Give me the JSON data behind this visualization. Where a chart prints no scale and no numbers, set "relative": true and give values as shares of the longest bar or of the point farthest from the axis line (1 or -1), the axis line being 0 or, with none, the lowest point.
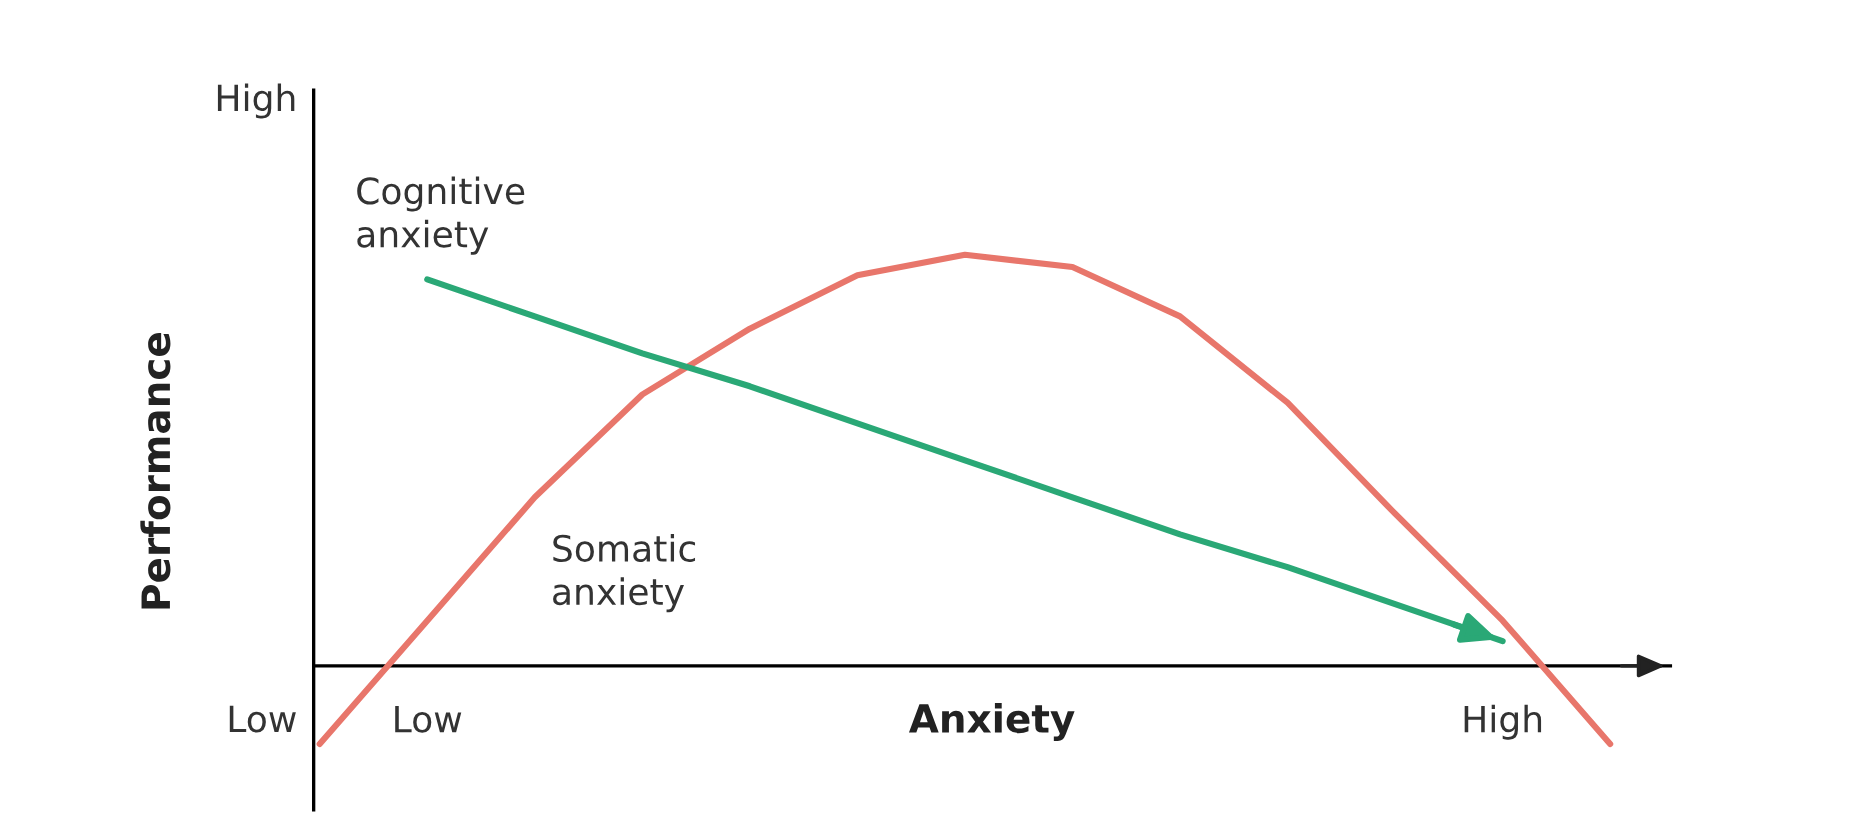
{
  "chart_data": {
    "type": "line",
    "relative": true,
    "xlabel": "Anxiety",
    "ylabel": "Performance",
    "categories": [
      null,
      "Low",
      null,
      null,
      null,
      null,
      null,
      null,
      null,
      null,
      null,
      "High",
      null
    ],
    "series": [
      {
        "name": "Somatic anxiety",
        "color": "#e8766b",
        "values": [
          -0.19,
          0.11,
          0.41,
          0.66,
          0.82,
          0.95,
          1,
          0.97,
          0.85,
          0.64,
          0.37,
          0.11,
          -0.19
        ]
      },
      {
        "name": "Cognitive anxiety",
        "color": "#2aa876",
        "values": [
          null,
          0.94,
          0.85,
          0.76,
          0.68,
          0.59,
          0.5,
          0.41,
          0.32,
          0.24,
          0.15,
          0.06,
          null
        ]
      }
    ],
    "annotations": [
      "High",
      "Low"
    ],
    "grid": false
  }
}
